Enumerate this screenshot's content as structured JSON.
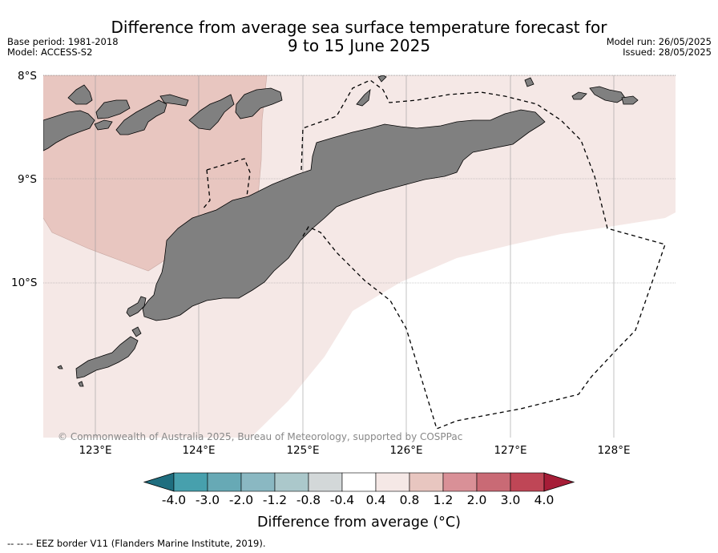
{
  "header": {
    "title_line1": "Difference from average sea surface temperature forecast for",
    "title_line2": "9 to 15 June 2025",
    "base_period": "Base period: 1981-2018",
    "model": "Model: ACCESS-S2",
    "model_run": "Model run: 26/05/2025",
    "issued": "Issued: 28/05/2025"
  },
  "map": {
    "lat_labels": [
      "8°S",
      "9°S",
      "10°S"
    ],
    "lon_labels": [
      "123°E",
      "124°E",
      "125°E",
      "126°E",
      "127°E",
      "128°E"
    ],
    "copyright": "© Commonwealth of Australia 2025, Bureau of Meteorology, supported by COSPPac",
    "colors": {
      "land": "#808080",
      "anomaly_0_4_to_0_8": "#f5e8e6",
      "anomaly_0_8_to_1_2": "#e8c6c0",
      "near_zero": "#ffffff"
    }
  },
  "colorbar": {
    "tick_labels": [
      "-4.0",
      "-3.0",
      "-2.0",
      "-1.2",
      "-0.8",
      "-0.4",
      "0.4",
      "0.8",
      "1.2",
      "2.0",
      "3.0",
      "4.0"
    ],
    "colors": [
      "#1f6e7f",
      "#47a0ad",
      "#67a9b5",
      "#8ab8c2",
      "#abc8cb",
      "#d3d8d9",
      "#ffffff",
      "#f5e8e6",
      "#e8c6c0",
      "#d99097",
      "#c96a75",
      "#bf4656",
      "#a61d37"
    ],
    "title": "Difference from average (°C)"
  },
  "footer": {
    "legend": "--  --  -- EEZ border V11 (Flanders Marine Institute, 2019)."
  }
}
